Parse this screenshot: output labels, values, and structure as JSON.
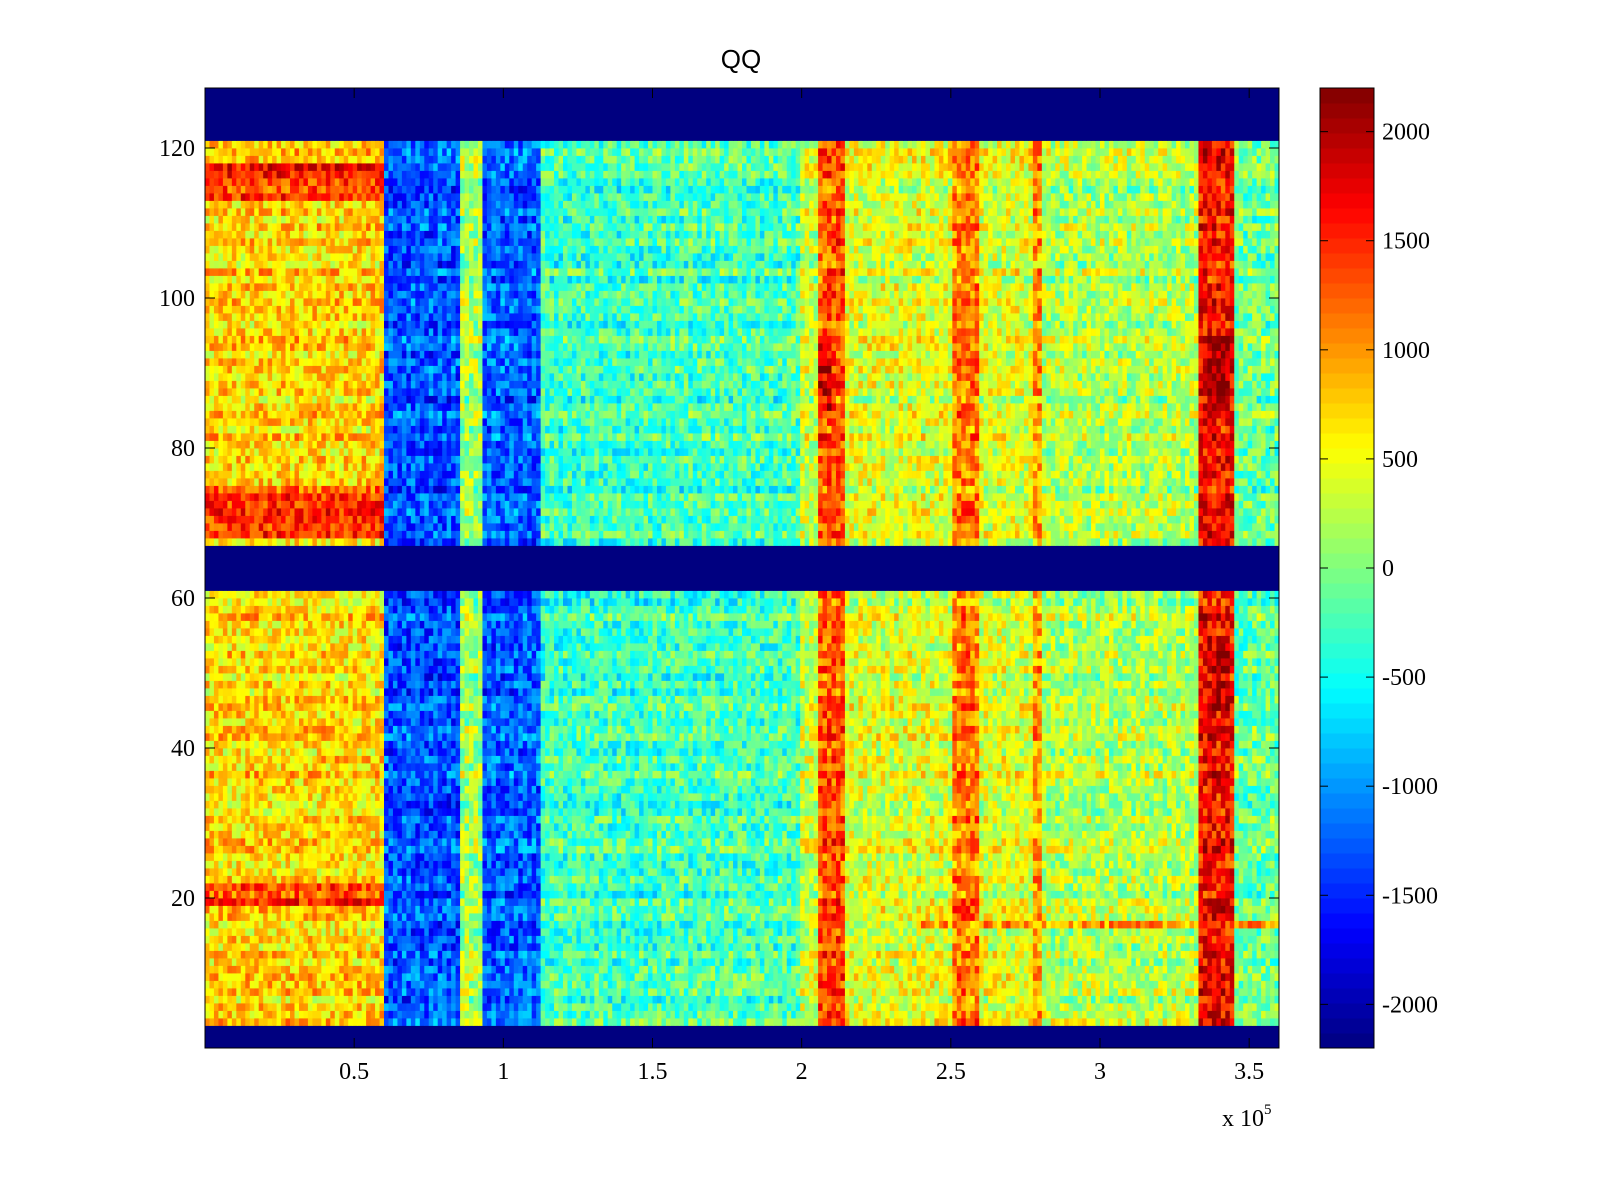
{
  "chart_data": {
    "type": "heatmap",
    "title": "QQ",
    "xlabel": "",
    "ylabel": "",
    "x_multiplier_label": "x 10",
    "x_multiplier_exponent": "5",
    "xlim": [
      0,
      3.6
    ],
    "ylim": [
      0,
      128
    ],
    "x_ticks": [
      "0.5",
      "1",
      "1.5",
      "2",
      "2.5",
      "3",
      "3.5"
    ],
    "x_tick_values": [
      0.5,
      1,
      1.5,
      2,
      2.5,
      3,
      3.5
    ],
    "y_ticks": [
      "20",
      "40",
      "60",
      "80",
      "100",
      "120"
    ],
    "y_tick_values": [
      20,
      40,
      60,
      80,
      100,
      120
    ],
    "colorbar": {
      "colormap": "jet",
      "range": [
        -2200,
        2200
      ],
      "ticks": [
        "2000",
        "1500",
        "1000",
        "500",
        "0",
        "-500",
        "-1000",
        "-1500",
        "-2000"
      ],
      "tick_values": [
        2000,
        1500,
        1000,
        500,
        0,
        -500,
        -1000,
        -1500,
        -2000
      ]
    },
    "masked_rows": [
      [
        0,
        3
      ],
      [
        61,
        67
      ],
      [
        121,
        128
      ]
    ],
    "masked_value": -2200,
    "column_bands": [
      {
        "x0": 0.0,
        "x1": 0.6,
        "value": 700
      },
      {
        "x0": 0.6,
        "x1": 0.85,
        "value": -1300
      },
      {
        "x0": 0.85,
        "x1": 0.93,
        "value": 150
      },
      {
        "x0": 0.93,
        "x1": 1.12,
        "value": -1250
      },
      {
        "x0": 1.12,
        "x1": 1.5,
        "value": -300
      },
      {
        "x0": 1.5,
        "x1": 2.0,
        "value": -250
      },
      {
        "x0": 2.0,
        "x1": 2.05,
        "value": 300
      },
      {
        "x0": 2.05,
        "x1": 2.15,
        "value": 1300
      },
      {
        "x0": 2.15,
        "x1": 2.5,
        "value": 400
      },
      {
        "x0": 2.5,
        "x1": 2.6,
        "value": 1100
      },
      {
        "x0": 2.6,
        "x1": 2.77,
        "value": 400
      },
      {
        "x0": 2.77,
        "x1": 2.8,
        "value": 1000
      },
      {
        "x0": 2.8,
        "x1": 3.33,
        "value": 200
      },
      {
        "x0": 3.33,
        "x1": 3.45,
        "value": 1600
      },
      {
        "x0": 3.45,
        "x1": 3.6,
        "value": -100
      }
    ],
    "row_highlights": [
      {
        "y0": 113,
        "y1": 118,
        "x0": 0.0,
        "x1": 0.6,
        "value": 1500
      },
      {
        "y0": 68,
        "y1": 75,
        "x0": 0.0,
        "x1": 0.6,
        "value": 1400
      },
      {
        "y0": 19,
        "y1": 22,
        "x0": 0.0,
        "x1": 0.6,
        "value": 1400
      },
      {
        "y0": 16,
        "y1": 17,
        "x0": 2.4,
        "x1": 3.6,
        "value": 1100
      },
      {
        "y0": 85,
        "y1": 95,
        "x0": 3.36,
        "x1": 3.44,
        "value": 2000
      },
      {
        "y0": 45,
        "y1": 55,
        "x0": 3.36,
        "x1": 3.44,
        "value": 1900
      },
      {
        "y0": 85,
        "y1": 95,
        "x0": 2.05,
        "x1": 2.1,
        "value": 1800
      }
    ]
  }
}
